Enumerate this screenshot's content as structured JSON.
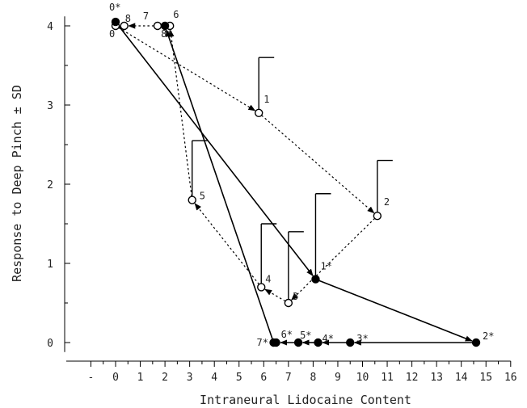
{
  "chart_data": {
    "type": "scatter",
    "title": "",
    "xlabel": "Intraneural Lidocaine Content",
    "ylabel": "Response to Deep Pinch ± SD",
    "xlim": [
      -2,
      16
    ],
    "ylim": [
      0,
      4
    ],
    "x_ticks": [
      -1,
      0,
      1,
      2,
      3,
      4,
      5,
      6,
      7,
      8,
      9,
      10,
      11,
      12,
      13,
      14,
      15,
      16
    ],
    "x_tick_labels": [
      "-",
      "0",
      "1",
      "2",
      "3",
      "4",
      "5",
      "6",
      "7",
      "8",
      "9",
      "10",
      "11",
      "12",
      "13",
      "14",
      "15",
      "16"
    ],
    "y_ticks": [
      0,
      1,
      2,
      3,
      4
    ],
    "y_tick_labels": [
      "0",
      "1",
      "2",
      "3",
      "4"
    ],
    "grid": false,
    "series": [
      {
        "marker": "open-circle",
        "line_style": "dotted",
        "color": "#000000",
        "points": [
          {
            "label": "0",
            "x": 0.0,
            "y": 4.0
          },
          {
            "label": "1",
            "x": 5.8,
            "y": 2.9,
            "sd": 0.7
          },
          {
            "label": "2",
            "x": 10.6,
            "y": 1.6,
            "sd": 0.7
          },
          {
            "label": "3",
            "x": 7.0,
            "y": 0.5,
            "sd": 0.9
          },
          {
            "label": "4",
            "x": 5.9,
            "y": 0.7,
            "sd": 0.8
          },
          {
            "label": "5",
            "x": 3.1,
            "y": 1.8,
            "sd": 0.75
          },
          {
            "label": "6",
            "x": 2.2,
            "y": 4.0
          },
          {
            "label": "7",
            "x": 1.7,
            "y": 4.0
          },
          {
            "label": "8",
            "x": 0.35,
            "y": 4.0
          }
        ]
      },
      {
        "marker": "filled-circle",
        "line_style": "solid",
        "color": "#000000",
        "points": [
          {
            "label": "0*",
            "x": 0.0,
            "y": 4.05
          },
          {
            "label": "1*",
            "x": 8.1,
            "y": 0.8,
            "sd": 1.08
          },
          {
            "label": "2*",
            "x": 14.6,
            "y": 0.0
          },
          {
            "label": "3*",
            "x": 9.5,
            "y": 0.0
          },
          {
            "label": "4*",
            "x": 8.2,
            "y": 0.0
          },
          {
            "label": "5*",
            "x": 7.4,
            "y": 0.0
          },
          {
            "label": "6*",
            "x": 6.5,
            "y": 0.0
          },
          {
            "label": "7*",
            "x": 6.4,
            "y": 0.0
          },
          {
            "label": "8*",
            "x": 2.0,
            "y": 4.0
          }
        ]
      }
    ]
  }
}
